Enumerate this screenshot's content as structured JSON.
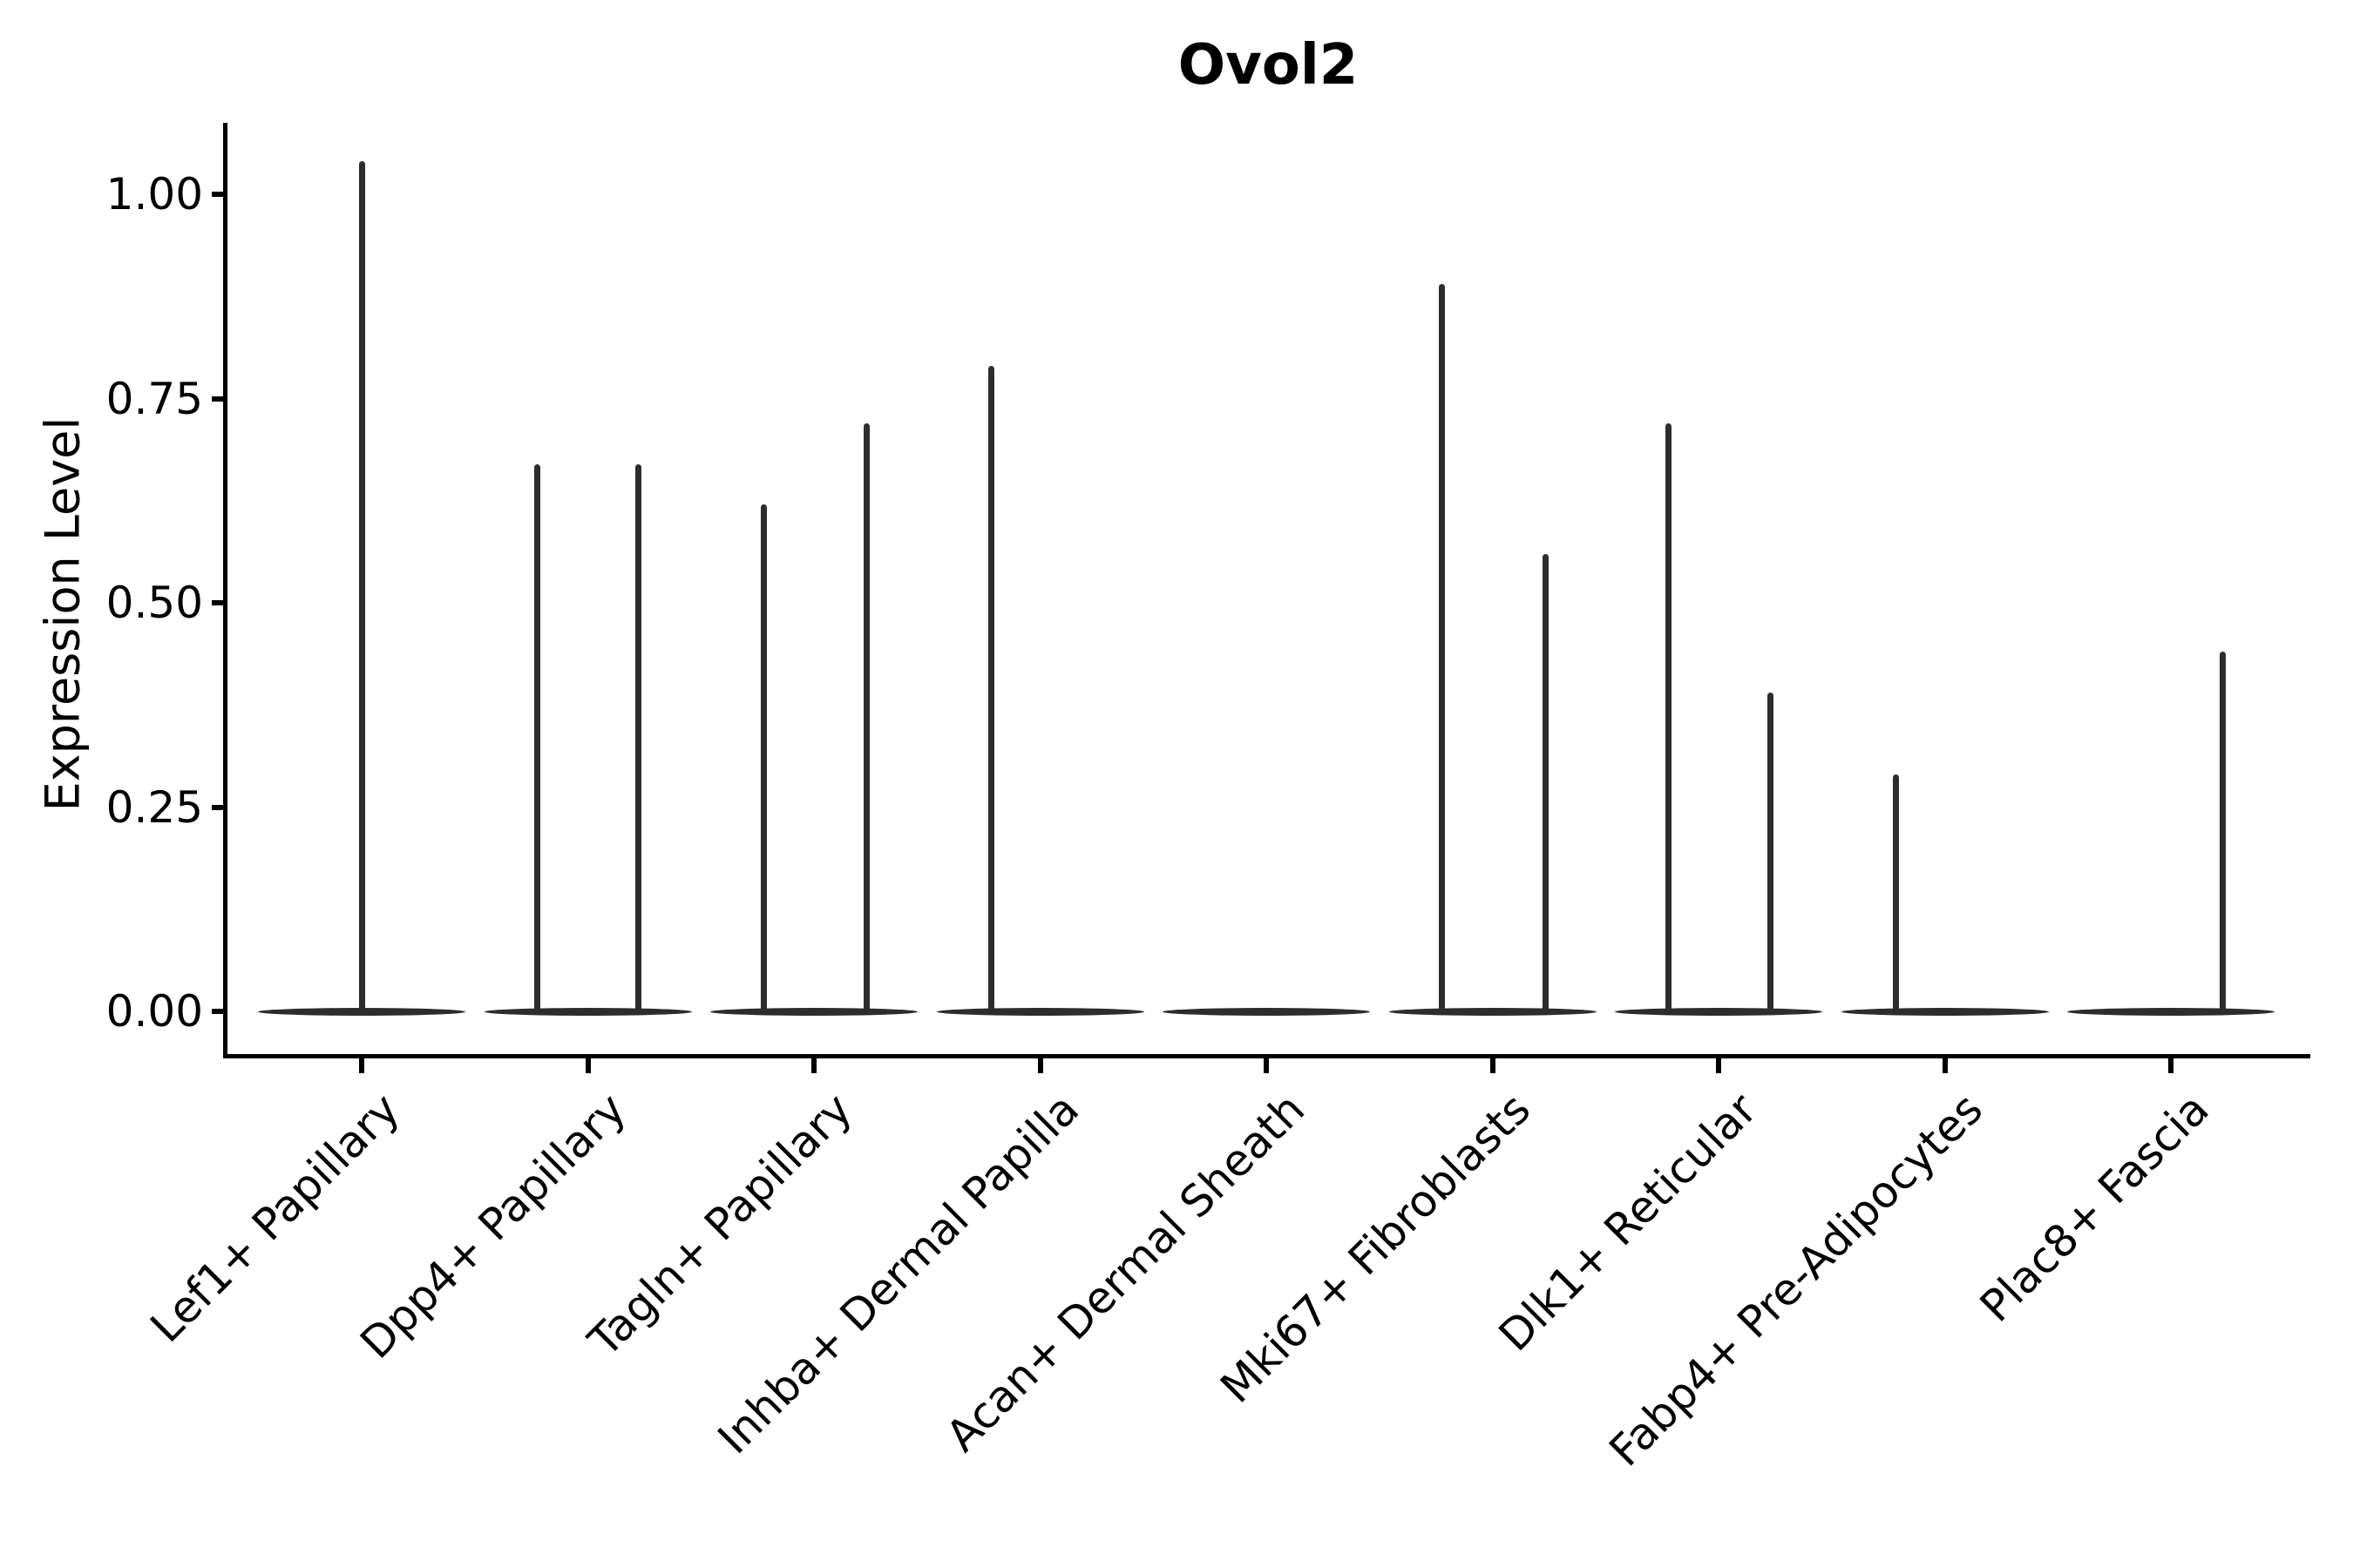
{
  "figure": {
    "title": "Ovol2",
    "y_axis": {
      "label": "Expression Level",
      "tick_labels": [
        "0.00",
        "0.25",
        "0.50",
        "0.75",
        "1.00"
      ]
    },
    "x_axis": {
      "label": "",
      "tick_count": 9
    }
  },
  "chart_data": {
    "type": "violin",
    "title": "Ovol2",
    "xlabel": "",
    "ylabel": "Expression Level",
    "ylim": [
      -0.05,
      1.09
    ],
    "yticks": [
      0.0,
      0.25,
      0.5,
      0.75,
      1.0
    ],
    "ytick_labels": [
      "0.00",
      "0.25",
      "0.50",
      "0.75",
      "1.00"
    ],
    "grid": false,
    "legend": null,
    "axis_color": "#000000",
    "violin_color": "#2d2d2d",
    "background_color": "#ffffff",
    "categories": [
      "Lef1+ Papillary",
      "Dpp4+ Papillary",
      "Tagln+ Papillary",
      "Inhba+ Dermal Papilla",
      "Acan+ Dermal Sheath",
      "Mki67+ Fibroblasts",
      "Dlk1+ Reticular",
      "Fabp4+ Pre-Adipocytes",
      "Plac8+ Fascia"
    ],
    "note": "Each category shows flat near-zero violin mass at 0 with thin density spikes reaching the max expression value; spike offset is the fraction of the category slot width from the category center.",
    "violins": [
      {
        "category": "Lef1+ Papillary",
        "baseline": 0,
        "spikes": [
          {
            "offset": 0.0,
            "max": 1.04
          }
        ]
      },
      {
        "category": "Dpp4+ Papillary",
        "baseline": 0,
        "spikes": [
          {
            "offset": -0.225,
            "max": 0.67
          },
          {
            "offset": 0.225,
            "max": 0.67
          }
        ]
      },
      {
        "category": "Tagln+ Papillary",
        "baseline": 0,
        "spikes": [
          {
            "offset": -0.22,
            "max": 0.62
          },
          {
            "offset": 0.235,
            "max": 0.72
          }
        ]
      },
      {
        "category": "Inhba+ Dermal Papilla",
        "baseline": 0,
        "spikes": [
          {
            "offset": -0.215,
            "max": 0.79
          }
        ]
      },
      {
        "category": "Acan+ Dermal Sheath",
        "baseline": 0,
        "spikes": []
      },
      {
        "category": "Mki67+ Fibroblasts",
        "baseline": 0,
        "spikes": [
          {
            "offset": -0.225,
            "max": 0.89
          },
          {
            "offset": 0.235,
            "max": 0.56
          }
        ]
      },
      {
        "category": "Dlk1+ Reticular",
        "baseline": 0,
        "spikes": [
          {
            "offset": -0.22,
            "max": 0.72
          },
          {
            "offset": 0.23,
            "max": 0.39
          }
        ]
      },
      {
        "category": "Fabp4+ Pre-Adipocytes",
        "baseline": 0,
        "spikes": [
          {
            "offset": -0.215,
            "max": 0.29
          }
        ]
      },
      {
        "category": "Plac8+ Fascia",
        "baseline": 0,
        "spikes": [
          {
            "offset": 0.23,
            "max": 0.44
          }
        ]
      }
    ]
  }
}
